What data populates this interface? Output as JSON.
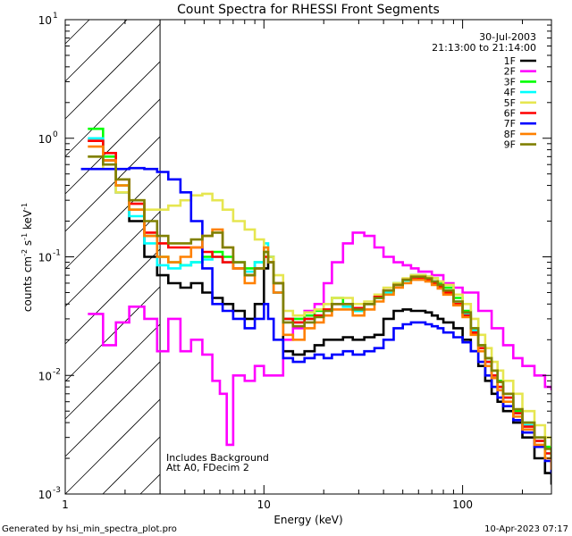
{
  "chart_data": {
    "type": "line",
    "title": "Count Spectra for RHESSI Front Segments",
    "xlabel": "Energy (keV)",
    "ylabel_parts": {
      "main": "counts cm",
      "sup1": "-2",
      "mid1": " s",
      "sup2": "-1",
      "mid2": " keV",
      "sup3": "-1"
    },
    "x_scale": "log",
    "y_scale": "log",
    "xlim": [
      1,
      280
    ],
    "ylim": [
      0.001,
      10
    ],
    "x_ticks": [
      {
        "value": 1,
        "label": "1"
      },
      {
        "value": 10,
        "label": "10"
      },
      {
        "value": 100,
        "label": "100"
      }
    ],
    "y_ticks": [
      {
        "value": 10,
        "base": "10",
        "exp": "1"
      },
      {
        "value": 1,
        "base": "10",
        "exp": "0"
      },
      {
        "value": 0.1,
        "base": "10",
        "exp": "-1"
      },
      {
        "value": 0.01,
        "base": "10",
        "exp": "-2"
      },
      {
        "value": 0.001,
        "base": "10",
        "exp": "-3"
      }
    ],
    "date": "30-Jul-2003",
    "time_range": "21:13:00 to 21:14:00",
    "annotations": [
      "Includes Background",
      "Att A0, FDecim 2"
    ],
    "excluded_region_below_keV": 3,
    "series": [
      {
        "name": "1F",
        "color": "#000000",
        "x": [
          1.3,
          1.55,
          1.8,
          2.1,
          2.5,
          2.9,
          3.3,
          3.8,
          4.3,
          4.9,
          5.5,
          6.2,
          7.0,
          8.0,
          9.0,
          10.0,
          10.5,
          11.2,
          12.5,
          14,
          16,
          18,
          20,
          22,
          25,
          28,
          32,
          36,
          40,
          45,
          50,
          55,
          60,
          65,
          70,
          75,
          80,
          90,
          100,
          110,
          120,
          130,
          140,
          150,
          160,
          180,
          200,
          230,
          260,
          280
        ],
        "y": [
          0.95,
          0.65,
          0.35,
          0.2,
          0.1,
          0.07,
          0.06,
          0.055,
          0.06,
          0.05,
          0.045,
          0.04,
          0.035,
          0.03,
          0.04,
          0.08,
          0.1,
          0.05,
          0.016,
          0.015,
          0.016,
          0.018,
          0.02,
          0.02,
          0.021,
          0.02,
          0.021,
          0.022,
          0.03,
          0.035,
          0.036,
          0.035,
          0.035,
          0.034,
          0.032,
          0.03,
          0.028,
          0.025,
          0.02,
          0.016,
          0.012,
          0.009,
          0.007,
          0.006,
          0.005,
          0.004,
          0.003,
          0.002,
          0.0015,
          0.0012
        ]
      },
      {
        "name": "2F",
        "color": "#ff00ff",
        "x": [
          1.3,
          1.55,
          1.8,
          2.1,
          2.5,
          2.9,
          3.3,
          3.8,
          4.3,
          4.9,
          5.5,
          6.0,
          6.5,
          7.0,
          8.0,
          9.0,
          10.0,
          11.0,
          12.5,
          14,
          16,
          18,
          20,
          22,
          25,
          28,
          32,
          36,
          40,
          45,
          50,
          55,
          60,
          70,
          80,
          90,
          100,
          120,
          140,
          160,
          180,
          200,
          230,
          260,
          280
        ],
        "y": [
          0.033,
          0.018,
          0.028,
          0.038,
          0.03,
          0.016,
          0.03,
          0.016,
          0.02,
          0.015,
          0.009,
          0.007,
          0.0026,
          0.01,
          0.009,
          0.012,
          0.01,
          0.01,
          0.02,
          0.025,
          0.035,
          0.04,
          0.06,
          0.09,
          0.13,
          0.16,
          0.15,
          0.12,
          0.1,
          0.09,
          0.085,
          0.08,
          0.075,
          0.07,
          0.06,
          0.055,
          0.05,
          0.035,
          0.025,
          0.018,
          0.014,
          0.012,
          0.01,
          0.008,
          0.0075
        ]
      },
      {
        "name": "3F",
        "color": "#00ff00",
        "x": [
          1.3,
          1.55,
          1.8,
          2.1,
          2.5,
          2.9,
          3.3,
          3.8,
          4.3,
          4.9,
          5.5,
          6.2,
          7.0,
          8.0,
          9.0,
          10.0,
          10.5,
          11.2,
          12.5,
          14,
          16,
          18,
          20,
          22,
          25,
          28,
          32,
          36,
          40,
          45,
          50,
          55,
          60,
          65,
          70,
          75,
          80,
          90,
          100,
          110,
          120,
          130,
          140,
          150,
          160,
          180,
          200,
          230,
          260,
          280
        ],
        "y": [
          1.2,
          0.7,
          0.4,
          0.25,
          0.15,
          0.1,
          0.09,
          0.085,
          0.09,
          0.1,
          0.11,
          0.1,
          0.09,
          0.08,
          0.09,
          0.11,
          0.1,
          0.06,
          0.03,
          0.03,
          0.032,
          0.035,
          0.04,
          0.045,
          0.04,
          0.035,
          0.04,
          0.045,
          0.05,
          0.06,
          0.065,
          0.07,
          0.07,
          0.068,
          0.066,
          0.06,
          0.055,
          0.045,
          0.035,
          0.025,
          0.018,
          0.014,
          0.011,
          0.009,
          0.007,
          0.005,
          0.004,
          0.003,
          0.0025,
          0.002
        ]
      },
      {
        "name": "4F",
        "color": "#00ffff",
        "x": [
          1.3,
          1.55,
          1.8,
          2.1,
          2.5,
          2.9,
          3.3,
          3.8,
          4.3,
          4.9,
          5.5,
          6.2,
          7.0,
          8.0,
          9.0,
          10.0,
          10.5,
          11.2,
          12.5,
          14,
          16,
          18,
          20,
          22,
          25,
          28,
          32,
          36,
          40,
          45,
          50,
          55,
          60,
          65,
          70,
          75,
          80,
          90,
          100,
          110,
          120,
          130,
          140,
          150,
          160,
          180,
          200,
          230,
          260,
          280
        ],
        "y": [
          1.0,
          0.6,
          0.35,
          0.22,
          0.13,
          0.085,
          0.08,
          0.085,
          0.09,
          0.095,
          0.1,
          0.09,
          0.08,
          0.075,
          0.09,
          0.13,
          0.1,
          0.05,
          0.03,
          0.028,
          0.03,
          0.032,
          0.035,
          0.04,
          0.038,
          0.035,
          0.04,
          0.045,
          0.05,
          0.058,
          0.063,
          0.066,
          0.068,
          0.066,
          0.062,
          0.058,
          0.052,
          0.042,
          0.033,
          0.024,
          0.017,
          0.013,
          0.01,
          0.008,
          0.0065,
          0.0048,
          0.0038,
          0.0028,
          0.0022,
          0.0018
        ]
      },
      {
        "name": "5F",
        "color": "#e6e650",
        "x": [
          1.3,
          1.55,
          1.8,
          2.1,
          2.5,
          2.9,
          3.3,
          3.8,
          4.3,
          4.9,
          5.5,
          6.2,
          7.0,
          8.0,
          9.0,
          10.0,
          10.5,
          11.2,
          12.5,
          14,
          16,
          18,
          20,
          22,
          25,
          28,
          32,
          36,
          40,
          45,
          50,
          55,
          60,
          65,
          70,
          75,
          80,
          90,
          100,
          110,
          120,
          130,
          140,
          150,
          160,
          180,
          200,
          230,
          260,
          280
        ],
        "y": [
          0.7,
          0.55,
          0.35,
          0.3,
          0.25,
          0.25,
          0.27,
          0.3,
          0.33,
          0.34,
          0.3,
          0.25,
          0.2,
          0.17,
          0.14,
          0.12,
          0.1,
          0.07,
          0.035,
          0.032,
          0.034,
          0.036,
          0.04,
          0.045,
          0.045,
          0.04,
          0.042,
          0.048,
          0.055,
          0.06,
          0.066,
          0.07,
          0.07,
          0.068,
          0.066,
          0.062,
          0.058,
          0.048,
          0.04,
          0.03,
          0.022,
          0.017,
          0.013,
          0.011,
          0.009,
          0.007,
          0.005,
          0.0038,
          0.003,
          0.0025
        ]
      },
      {
        "name": "6F",
        "color": "#ff0000",
        "x": [
          1.3,
          1.55,
          1.8,
          2.1,
          2.5,
          2.9,
          3.3,
          3.8,
          4.3,
          4.9,
          5.5,
          6.2,
          7.0,
          8.0,
          9.0,
          10.0,
          10.5,
          11.2,
          12.5,
          14,
          16,
          18,
          20,
          22,
          25,
          28,
          32,
          36,
          40,
          45,
          50,
          55,
          60,
          65,
          70,
          75,
          80,
          90,
          100,
          110,
          120,
          130,
          140,
          150,
          160,
          180,
          200,
          230,
          260,
          280
        ],
        "y": [
          0.95,
          0.75,
          0.45,
          0.28,
          0.16,
          0.13,
          0.12,
          0.12,
          0.12,
          0.11,
          0.1,
          0.09,
          0.08,
          0.07,
          0.08,
          0.1,
          0.09,
          0.06,
          0.03,
          0.028,
          0.03,
          0.032,
          0.036,
          0.04,
          0.04,
          0.037,
          0.04,
          0.046,
          0.052,
          0.058,
          0.064,
          0.067,
          0.066,
          0.064,
          0.06,
          0.056,
          0.05,
          0.04,
          0.032,
          0.023,
          0.017,
          0.013,
          0.01,
          0.008,
          0.0065,
          0.0048,
          0.0037,
          0.0028,
          0.0022,
          0.0018
        ]
      },
      {
        "name": "7F",
        "color": "#0000ff",
        "x": [
          1.2,
          1.5,
          1.8,
          2.1,
          2.5,
          2.9,
          3.3,
          3.8,
          4.3,
          4.9,
          5.5,
          6.2,
          7.0,
          8.0,
          9.0,
          10.0,
          10.5,
          11.2,
          12.5,
          14,
          16,
          18,
          20,
          22,
          25,
          28,
          32,
          36,
          40,
          45,
          50,
          55,
          60,
          65,
          70,
          75,
          80,
          90,
          100,
          110,
          120,
          130,
          140,
          150,
          160,
          180,
          200,
          230,
          260,
          280
        ],
        "y": [
          0.55,
          0.55,
          0.55,
          0.56,
          0.55,
          0.52,
          0.45,
          0.35,
          0.2,
          0.08,
          0.04,
          0.035,
          0.03,
          0.025,
          0.03,
          0.04,
          0.03,
          0.02,
          0.014,
          0.013,
          0.014,
          0.015,
          0.014,
          0.015,
          0.016,
          0.015,
          0.016,
          0.017,
          0.02,
          0.025,
          0.027,
          0.028,
          0.028,
          0.027,
          0.026,
          0.025,
          0.023,
          0.021,
          0.019,
          0.016,
          0.013,
          0.01,
          0.008,
          0.0065,
          0.0055,
          0.0042,
          0.0033,
          0.0025,
          0.0019,
          0.0015
        ]
      },
      {
        "name": "8F",
        "color": "#ff8000",
        "x": [
          1.3,
          1.55,
          1.8,
          2.1,
          2.5,
          2.9,
          3.3,
          3.8,
          4.3,
          4.9,
          5.5,
          6.2,
          7.0,
          8.0,
          9.0,
          10.0,
          10.5,
          11.2,
          12.5,
          14,
          16,
          18,
          20,
          22,
          25,
          28,
          32,
          36,
          40,
          45,
          50,
          55,
          60,
          65,
          70,
          75,
          80,
          90,
          100,
          110,
          120,
          130,
          140,
          150,
          160,
          180,
          200,
          230,
          260,
          280
        ],
        "y": [
          0.85,
          0.65,
          0.4,
          0.25,
          0.15,
          0.1,
          0.09,
          0.1,
          0.12,
          0.15,
          0.17,
          0.12,
          0.08,
          0.06,
          0.08,
          0.12,
          0.09,
          0.05,
          0.022,
          0.02,
          0.025,
          0.028,
          0.032,
          0.036,
          0.036,
          0.032,
          0.036,
          0.042,
          0.048,
          0.055,
          0.06,
          0.064,
          0.064,
          0.062,
          0.058,
          0.054,
          0.048,
          0.039,
          0.031,
          0.022,
          0.016,
          0.012,
          0.0095,
          0.0075,
          0.006,
          0.0045,
          0.0035,
          0.0026,
          0.002,
          0.0016
        ]
      },
      {
        "name": "9F",
        "color": "#808000",
        "x": [
          1.3,
          1.55,
          1.8,
          2.1,
          2.5,
          2.9,
          3.3,
          3.8,
          4.3,
          4.9,
          5.5,
          6.2,
          7.0,
          8.0,
          9.0,
          10.0,
          10.5,
          11.2,
          12.5,
          14,
          16,
          18,
          20,
          22,
          25,
          28,
          32,
          36,
          40,
          45,
          50,
          55,
          60,
          65,
          70,
          75,
          80,
          90,
          100,
          110,
          120,
          130,
          140,
          150,
          160,
          180,
          200,
          230,
          260,
          280
        ],
        "y": [
          0.7,
          0.6,
          0.45,
          0.3,
          0.2,
          0.15,
          0.13,
          0.13,
          0.14,
          0.15,
          0.16,
          0.12,
          0.09,
          0.07,
          0.08,
          0.11,
          0.09,
          0.06,
          0.028,
          0.026,
          0.028,
          0.031,
          0.035,
          0.04,
          0.04,
          0.036,
          0.04,
          0.045,
          0.052,
          0.058,
          0.064,
          0.068,
          0.068,
          0.066,
          0.062,
          0.058,
          0.052,
          0.042,
          0.034,
          0.025,
          0.018,
          0.014,
          0.011,
          0.0088,
          0.007,
          0.0052,
          0.004,
          0.003,
          0.0024,
          0.002
        ]
      }
    ]
  },
  "footer": {
    "left": "Generated by hsi_min_spectra_plot.pro",
    "right": "10-Apr-2023 07:17"
  }
}
